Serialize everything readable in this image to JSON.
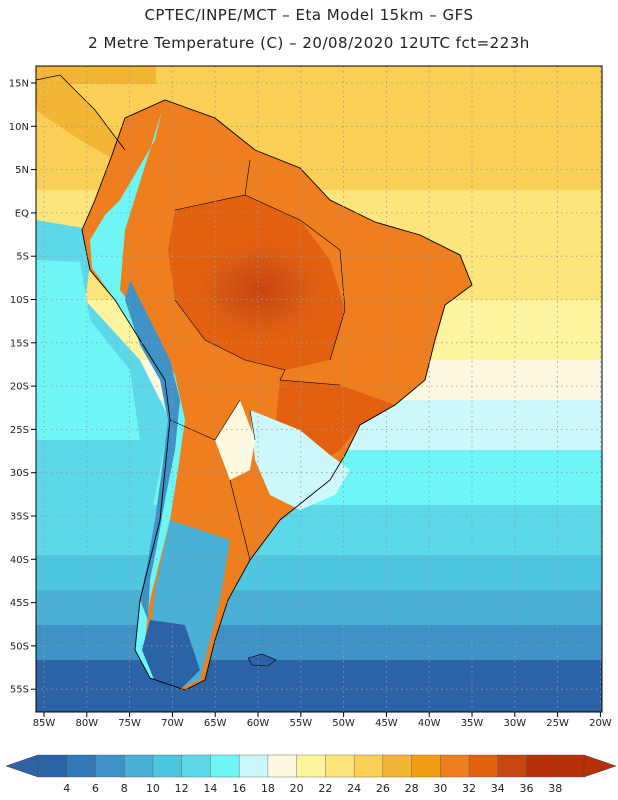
{
  "header": {
    "line1": "CPTEC/INPE/MCT –  Eta Model 15km – GFS",
    "line2": "2 Metre Temperature (C) – 20/08/2020 12UTC fct=223h"
  },
  "axes": {
    "lon_labels": [
      "85W",
      "80W",
      "75W",
      "70W",
      "65W",
      "60W",
      "55W",
      "50W",
      "45W",
      "40W",
      "35W",
      "30W",
      "25W",
      "20W"
    ],
    "lat_labels": [
      "15N",
      "10N",
      "5N",
      "EQ",
      "5S",
      "10S",
      "15S",
      "20S",
      "25S",
      "30S",
      "35S",
      "40S",
      "45S",
      "50S",
      "55S"
    ]
  },
  "colorbar": {
    "labels": [
      "4",
      "6",
      "8",
      "10",
      "12",
      "14",
      "16",
      "18",
      "20",
      "22",
      "24",
      "26",
      "28",
      "30",
      "32",
      "34",
      "36",
      "38"
    ],
    "colors": [
      "#2c62a6",
      "#3278b8",
      "#3f92c5",
      "#4ab0d6",
      "#4fc6e0",
      "#5cd8e8",
      "#6ef5f5",
      "#ccf8fc",
      "#fdf8e0",
      "#fef4a0",
      "#fce57a",
      "#f9d055",
      "#f2b534",
      "#f39c12",
      "#ee7e1e",
      "#e26010",
      "#c84410",
      "#b83008",
      "#b83008"
    ]
  }
}
